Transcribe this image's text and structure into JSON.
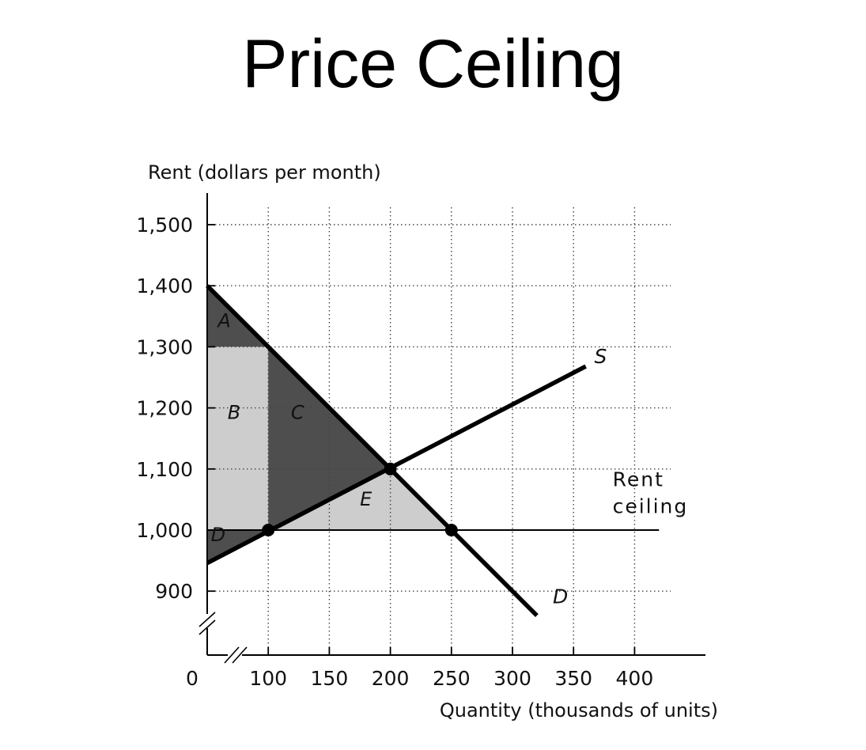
{
  "title": "Price Ceiling",
  "chart_data": {
    "type": "line",
    "title": "Price Ceiling",
    "ylabel": "Rent (dollars per month)",
    "xlabel": "Quantity (thousands of units)",
    "origin_label": "0",
    "x_ticks": [
      100,
      150,
      200,
      250,
      300,
      350,
      400
    ],
    "x_tick_labels": [
      "100",
      "150",
      "200",
      "250",
      "300",
      "350",
      "400"
    ],
    "y_ticks": [
      900,
      1000,
      1100,
      1200,
      1300,
      1400,
      1500
    ],
    "y_tick_labels": [
      "900",
      "1,000",
      "1,100",
      "1,200",
      "1,300",
      "1,400",
      "1,500"
    ],
    "xlim": [
      50,
      450
    ],
    "ylim": [
      840,
      1560
    ],
    "axis_breaks": true,
    "grid": "dotted",
    "series": [
      {
        "name": "S",
        "x": [
          50,
          360
        ],
        "y": [
          946,
          1268
        ]
      },
      {
        "name": "D",
        "x": [
          50,
          320
        ],
        "y": [
          1400,
          860
        ]
      },
      {
        "name": "Rent ceiling",
        "x": [
          50,
          420
        ],
        "y": [
          1000,
          1000
        ]
      }
    ],
    "points": [
      {
        "x": 100,
        "y": 1000
      },
      {
        "x": 200,
        "y": 1100
      },
      {
        "x": 250,
        "y": 1000
      }
    ],
    "regions": [
      {
        "label": "A",
        "shade": "dark",
        "polygon": [
          [
            50,
            1400
          ],
          [
            50,
            1300
          ],
          [
            100,
            1300
          ]
        ],
        "label_at": [
          64,
          1332
        ]
      },
      {
        "label": "B",
        "shade": "light",
        "polygon": [
          [
            50,
            1300
          ],
          [
            100,
            1300
          ],
          [
            100,
            1000
          ],
          [
            50,
            1000
          ]
        ],
        "label_at": [
          72,
          1182
        ]
      },
      {
        "label": "C",
        "shade": "dark",
        "polygon": [
          [
            100,
            1300
          ],
          [
            200,
            1100
          ],
          [
            100,
            1000
          ]
        ],
        "label_at": [
          124,
          1182
        ]
      },
      {
        "label": "D",
        "shade": "dark",
        "polygon": [
          [
            50,
            1000
          ],
          [
            100,
            1000
          ],
          [
            50,
            946
          ]
        ],
        "label_at": [
          59,
          982
        ]
      },
      {
        "label": "E",
        "shade": "light",
        "polygon": [
          [
            100,
            1000
          ],
          [
            200,
            1100
          ],
          [
            250,
            1000
          ]
        ],
        "label_at": [
          180,
          1040
        ]
      }
    ],
    "annotations": [
      {
        "text": "S",
        "x": 367,
        "y": 1273,
        "italic": true
      },
      {
        "text": "D",
        "x": 333,
        "y": 880,
        "italic": true
      },
      {
        "text": "Rent",
        "x": 382,
        "y": 1072
      },
      {
        "text": "ceiling",
        "x": 382,
        "y": 1028
      }
    ],
    "colors": {
      "dark": "#4e4e4e",
      "light": "#cdcdcd",
      "line": "#000000",
      "grid": "#444444"
    }
  }
}
